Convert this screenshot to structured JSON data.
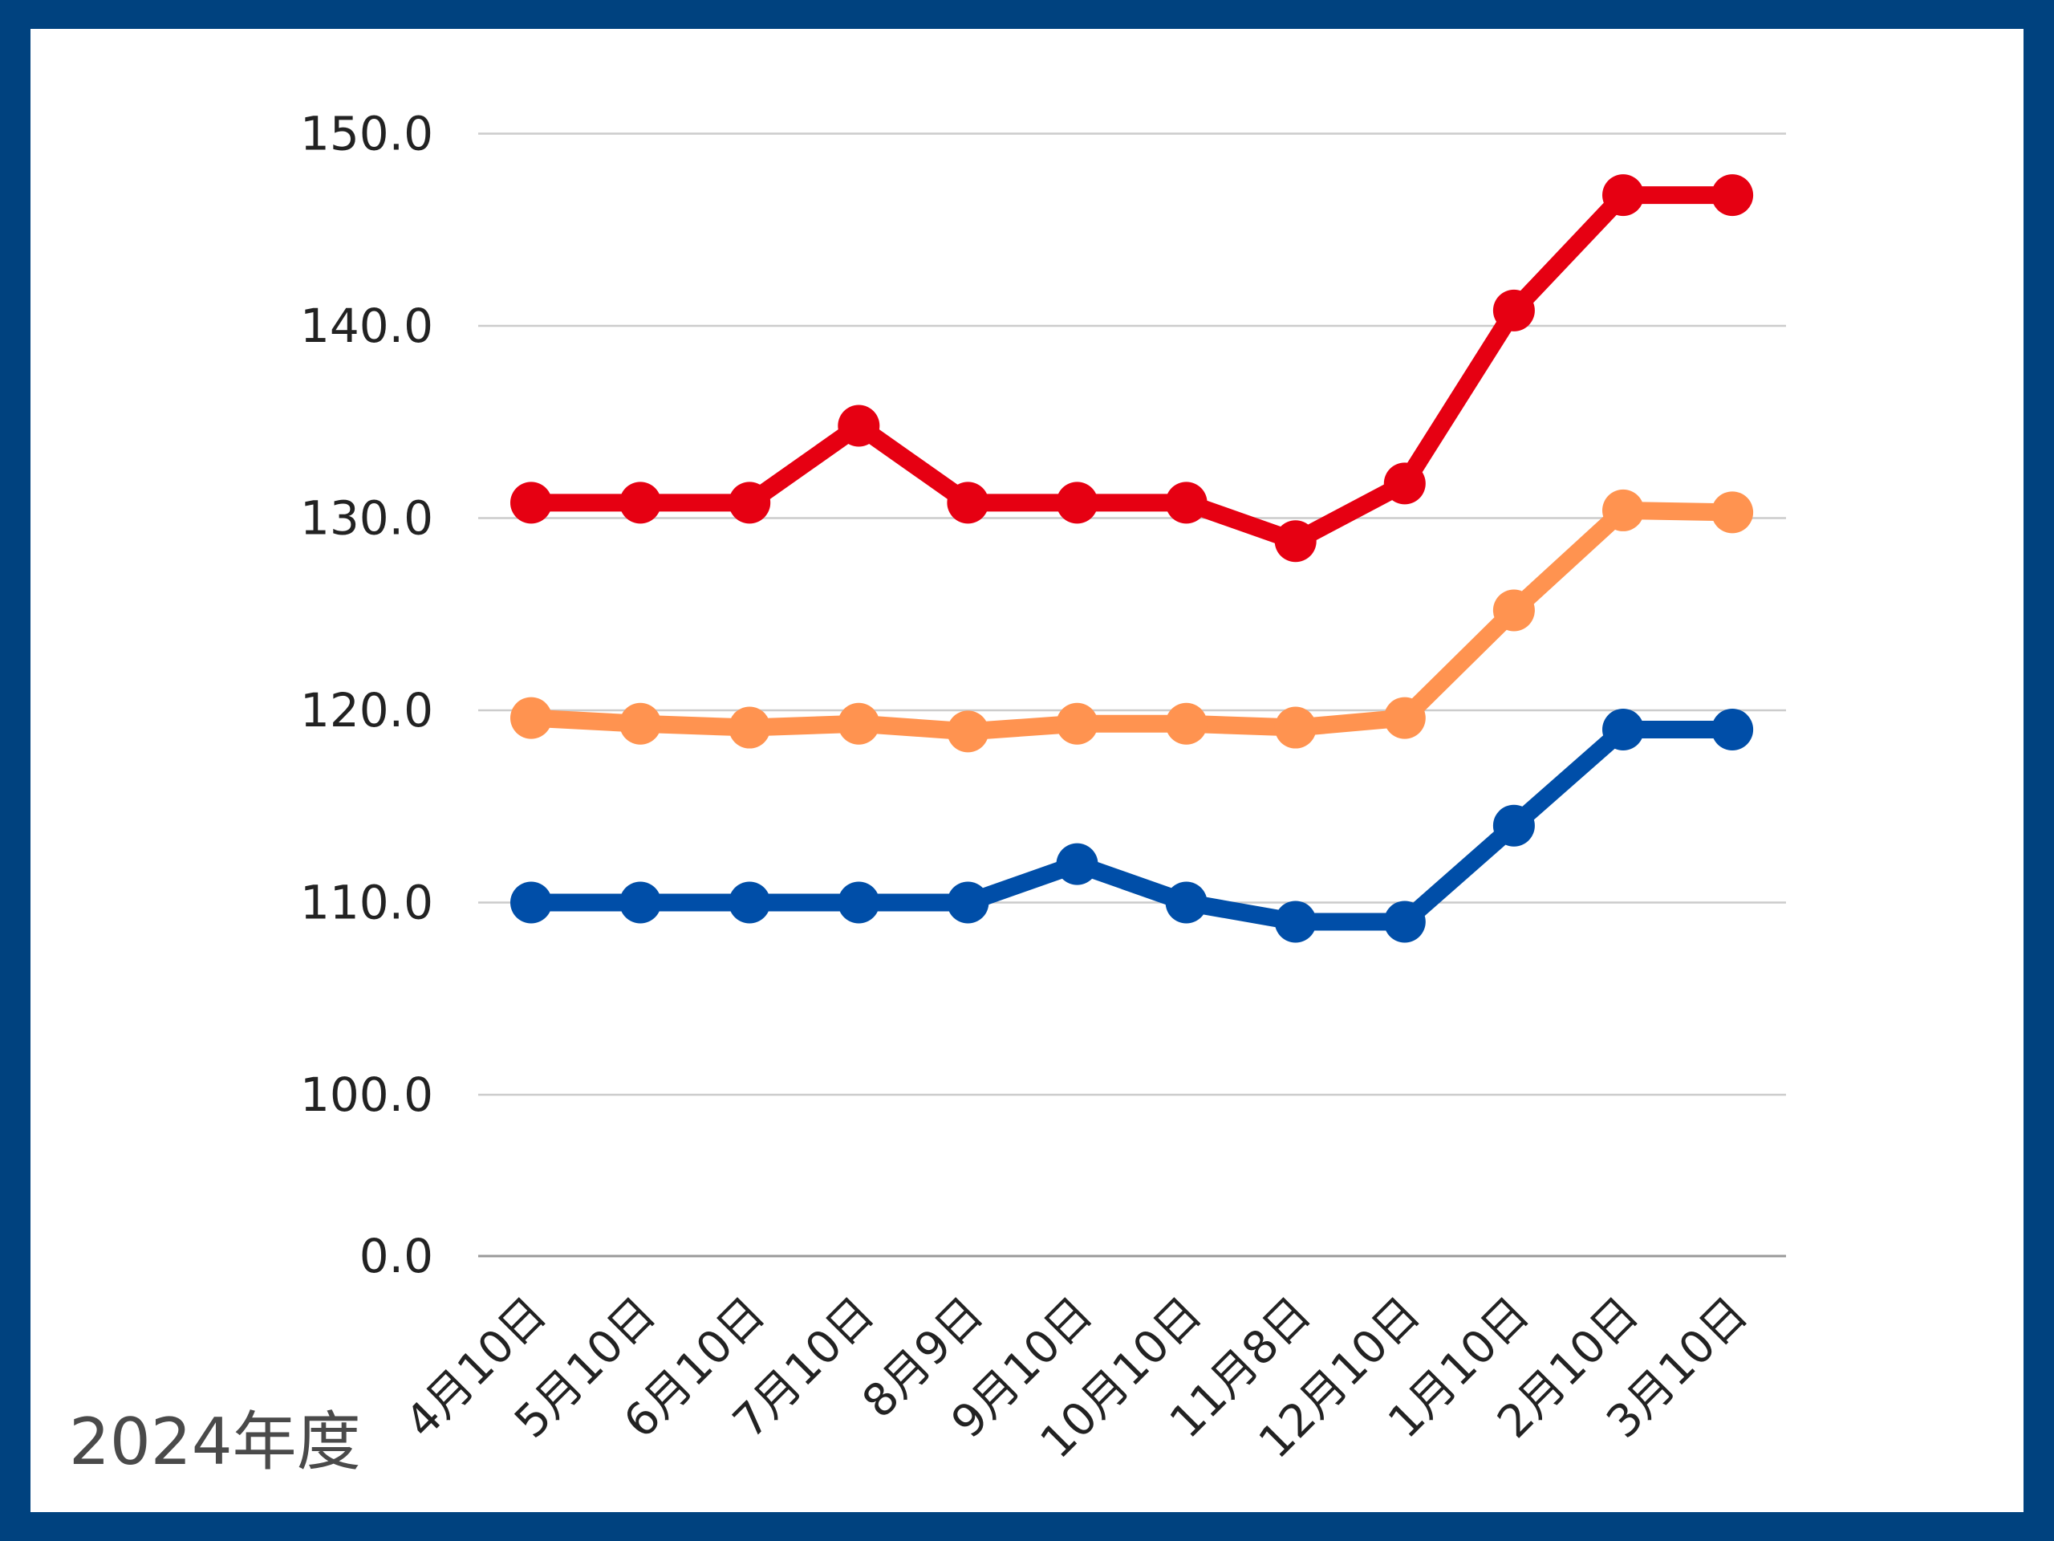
{
  "chart_data": {
    "type": "line",
    "title": "",
    "xlabel": "",
    "ylabel": "",
    "caption": "2024年度",
    "categories": [
      "4月10日",
      "5月10日",
      "6月10日",
      "7月10日",
      "8月9日",
      "9月10日",
      "10月10日",
      "11月8日",
      "12月10日",
      "1月10日",
      "2月10日",
      "3月10日"
    ],
    "y_ticks": [
      "0.0",
      "100.0",
      "110.0",
      "120.0",
      "130.0",
      "140.0",
      "150.0"
    ],
    "axis_note": "broken axis between 0.0 and 100.0",
    "grid": true,
    "series": [
      {
        "name": "red",
        "color": "#e60012",
        "values": [
          130.8,
          130.8,
          130.8,
          134.8,
          130.8,
          130.8,
          130.8,
          128.8,
          131.8,
          140.8,
          146.8,
          146.8
        ]
      },
      {
        "name": "orange",
        "color": "#ff9350",
        "values": [
          119.6,
          119.3,
          119.1,
          119.3,
          118.9,
          119.3,
          119.3,
          119.1,
          119.6,
          125.2,
          130.4,
          130.3
        ]
      },
      {
        "name": "blue",
        "color": "#004ea8",
        "values": [
          110.0,
          110.0,
          110.0,
          110.0,
          110.0,
          112.0,
          110.0,
          109.0,
          109.0,
          114.0,
          119.0,
          119.0
        ]
      }
    ]
  },
  "colors": {
    "frame": "#00427f",
    "grid": "#cccccc",
    "axis": "#999999"
  }
}
